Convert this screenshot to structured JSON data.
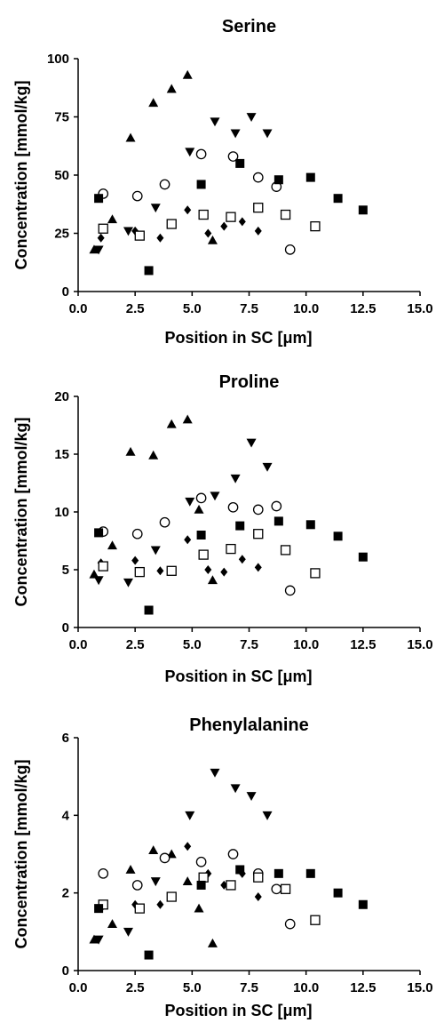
{
  "chart_data": [
    {
      "type": "scatter",
      "title": "Serine",
      "xlabel": "Position in SC [μm]",
      "ylabel": "Concentration [mmol/kg]",
      "xlim": [
        0,
        15
      ],
      "ylim": [
        0,
        100
      ],
      "xticks": [
        "0.0",
        "2.5",
        "5.0",
        "7.5",
        "10.0",
        "12.5",
        "15.0"
      ],
      "yticks": [
        "0",
        "25",
        "50",
        "75",
        "100"
      ],
      "grid": false,
      "series": [
        {
          "marker": "triangle-up",
          "points": [
            [
              0.7,
              18
            ],
            [
              1.5,
              31
            ],
            [
              2.3,
              66
            ],
            [
              3.3,
              81
            ],
            [
              4.1,
              87
            ],
            [
              4.8,
              93
            ],
            [
              5.9,
              22
            ]
          ]
        },
        {
          "marker": "triangle-down",
          "points": [
            [
              0.9,
              18
            ],
            [
              2.2,
              26
            ],
            [
              3.4,
              36
            ],
            [
              4.9,
              60
            ],
            [
              6.0,
              73
            ],
            [
              6.9,
              68
            ],
            [
              7.6,
              75
            ],
            [
              8.3,
              68
            ]
          ]
        },
        {
          "marker": "diamond",
          "points": [
            [
              1.0,
              23
            ],
            [
              2.5,
              26
            ],
            [
              3.6,
              23
            ],
            [
              4.8,
              35
            ],
            [
              5.7,
              25
            ],
            [
              6.4,
              28
            ],
            [
              7.2,
              30
            ],
            [
              7.9,
              26
            ]
          ]
        },
        {
          "marker": "circle-open",
          "points": [
            [
              1.1,
              42
            ],
            [
              2.6,
              41
            ],
            [
              3.8,
              46
            ],
            [
              5.4,
              59
            ],
            [
              6.8,
              58
            ],
            [
              7.9,
              49
            ],
            [
              8.7,
              45
            ],
            [
              9.3,
              18
            ]
          ]
        },
        {
          "marker": "square-open",
          "points": [
            [
              1.1,
              27
            ],
            [
              2.7,
              24
            ],
            [
              4.1,
              29
            ],
            [
              5.5,
              33
            ],
            [
              6.7,
              32
            ],
            [
              7.9,
              36
            ],
            [
              9.1,
              33
            ],
            [
              10.4,
              28
            ]
          ]
        },
        {
          "marker": "square-filled",
          "points": [
            [
              0.9,
              40
            ],
            [
              3.1,
              9
            ],
            [
              5.4,
              46
            ],
            [
              7.1,
              55
            ],
            [
              8.8,
              48
            ],
            [
              10.2,
              49
            ],
            [
              11.4,
              40
            ],
            [
              12.5,
              35
            ]
          ]
        }
      ]
    },
    {
      "type": "scatter",
      "title": "Proline",
      "xlabel": "Position in SC [μm]",
      "ylabel": "Concentration [mmol/kg]",
      "xlim": [
        0,
        15
      ],
      "ylim": [
        0,
        20
      ],
      "xticks": [
        "0.0",
        "2.5",
        "5.0",
        "7.5",
        "10.0",
        "12.5",
        "15.0"
      ],
      "yticks": [
        "0",
        "5",
        "10",
        "15",
        "20"
      ],
      "grid": false,
      "series": [
        {
          "marker": "triangle-up",
          "points": [
            [
              0.7,
              4.6
            ],
            [
              1.5,
              7.1
            ],
            [
              2.3,
              15.2
            ],
            [
              3.3,
              14.9
            ],
            [
              4.1,
              17.6
            ],
            [
              4.8,
              18.0
            ],
            [
              5.3,
              10.2
            ],
            [
              5.9,
              4.1
            ]
          ]
        },
        {
          "marker": "triangle-down",
          "points": [
            [
              0.9,
              4.1
            ],
            [
              2.2,
              3.9
            ],
            [
              3.4,
              6.7
            ],
            [
              4.9,
              10.9
            ],
            [
              6.0,
              11.4
            ],
            [
              6.9,
              12.9
            ],
            [
              7.6,
              16.0
            ],
            [
              8.3,
              13.9
            ]
          ]
        },
        {
          "marker": "diamond",
          "points": [
            [
              1.0,
              5.6
            ],
            [
              2.5,
              5.8
            ],
            [
              3.6,
              4.9
            ],
            [
              4.8,
              7.6
            ],
            [
              5.7,
              5.0
            ],
            [
              6.4,
              4.8
            ],
            [
              7.2,
              5.9
            ],
            [
              7.9,
              5.2
            ]
          ]
        },
        {
          "marker": "circle-open",
          "points": [
            [
              1.1,
              8.3
            ],
            [
              2.6,
              8.1
            ],
            [
              3.8,
              9.1
            ],
            [
              5.4,
              11.2
            ],
            [
              6.8,
              10.4
            ],
            [
              7.9,
              10.2
            ],
            [
              8.7,
              10.5
            ],
            [
              9.3,
              3.2
            ]
          ]
        },
        {
          "marker": "square-open",
          "points": [
            [
              1.1,
              5.3
            ],
            [
              2.7,
              4.8
            ],
            [
              4.1,
              4.9
            ],
            [
              5.5,
              6.3
            ],
            [
              6.7,
              6.8
            ],
            [
              7.9,
              8.1
            ],
            [
              9.1,
              6.7
            ],
            [
              10.4,
              4.7
            ]
          ]
        },
        {
          "marker": "square-filled",
          "points": [
            [
              0.9,
              8.2
            ],
            [
              3.1,
              1.5
            ],
            [
              5.4,
              8.0
            ],
            [
              7.1,
              8.8
            ],
            [
              8.8,
              9.2
            ],
            [
              10.2,
              8.9
            ],
            [
              11.4,
              7.9
            ],
            [
              12.5,
              6.1
            ]
          ]
        }
      ]
    },
    {
      "type": "scatter",
      "title": "Phenylalanine",
      "xlabel": "Position in SC [μm]",
      "ylabel": "Concentration [mmol/kg]",
      "xlim": [
        0,
        15
      ],
      "ylim": [
        0,
        6
      ],
      "xticks": [
        "0.0",
        "2.5",
        "5.0",
        "7.5",
        "10.0",
        "12.5",
        "15.0"
      ],
      "yticks": [
        "0",
        "2",
        "4",
        "6"
      ],
      "grid": false,
      "series": [
        {
          "marker": "triangle-up",
          "points": [
            [
              0.7,
              0.8
            ],
            [
              1.5,
              1.2
            ],
            [
              2.3,
              2.6
            ],
            [
              3.3,
              3.1
            ],
            [
              4.1,
              3.0
            ],
            [
              4.8,
              2.3
            ],
            [
              5.3,
              1.6
            ],
            [
              5.9,
              0.7
            ]
          ]
        },
        {
          "marker": "triangle-down",
          "points": [
            [
              0.9,
              0.8
            ],
            [
              2.2,
              1.0
            ],
            [
              3.4,
              2.3
            ],
            [
              4.9,
              4.0
            ],
            [
              6.0,
              5.1
            ],
            [
              6.9,
              4.7
            ],
            [
              7.6,
              4.5
            ],
            [
              8.3,
              4.0
            ]
          ]
        },
        {
          "marker": "diamond",
          "points": [
            [
              1.0,
              1.6
            ],
            [
              2.5,
              1.7
            ],
            [
              3.6,
              1.7
            ],
            [
              4.8,
              3.2
            ],
            [
              5.7,
              2.5
            ],
            [
              6.4,
              2.2
            ],
            [
              7.2,
              2.5
            ],
            [
              7.9,
              1.9
            ]
          ]
        },
        {
          "marker": "circle-open",
          "points": [
            [
              1.1,
              2.5
            ],
            [
              2.6,
              2.2
            ],
            [
              3.8,
              2.9
            ],
            [
              5.4,
              2.8
            ],
            [
              6.8,
              3.0
            ],
            [
              7.9,
              2.5
            ],
            [
              8.7,
              2.1
            ],
            [
              9.3,
              1.2
            ]
          ]
        },
        {
          "marker": "square-open",
          "points": [
            [
              1.1,
              1.7
            ],
            [
              2.7,
              1.6
            ],
            [
              4.1,
              1.9
            ],
            [
              5.5,
              2.4
            ],
            [
              6.7,
              2.2
            ],
            [
              7.9,
              2.4
            ],
            [
              9.1,
              2.1
            ],
            [
              10.4,
              1.3
            ]
          ]
        },
        {
          "marker": "square-filled",
          "points": [
            [
              0.9,
              1.6
            ],
            [
              3.1,
              0.4
            ],
            [
              5.4,
              2.2
            ],
            [
              7.1,
              2.6
            ],
            [
              8.8,
              2.5
            ],
            [
              10.2,
              2.5
            ],
            [
              11.4,
              2.0
            ],
            [
              12.5,
              1.7
            ]
          ]
        }
      ]
    }
  ]
}
